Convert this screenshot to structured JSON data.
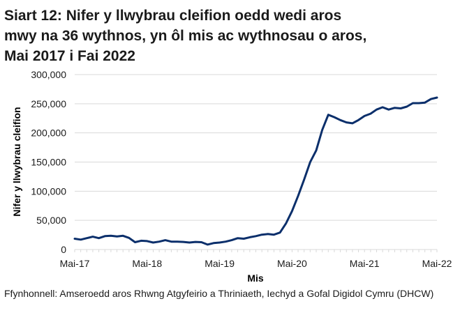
{
  "title_lines": [
    "Siart 12: Nifer y llwybrau cleifion oedd wedi aros",
    "mwy na 36 wythnos, yn ôl mis ac wythnosau o aros,",
    "Mai 2017 i Fai 2022"
  ],
  "source": "Ffynhonnell: Amseroedd aros Rhwng Atgyfeirio a Thriniaeth, Iechyd a Gofal Digidol Cymru (DHCW)",
  "colors": {
    "line": "#0b2f6b",
    "grid": "#d9d9d9",
    "text": "#1a1a1a"
  },
  "chart_data": {
    "type": "line",
    "title": "Siart 12: Nifer y llwybrau cleifion oedd wedi aros mwy na 36 wythnos, yn ôl mis ac wythnosau o aros, Mai 2017 i Fai 2022",
    "xlabel": "Mis",
    "ylabel": "Nifer y llwybrau cleifion",
    "ylim": [
      0,
      300000
    ],
    "yticks": [
      0,
      50000,
      100000,
      150000,
      200000,
      250000,
      300000
    ],
    "ytick_labels": [
      "0",
      "50,000",
      "100,000",
      "150,000",
      "200,000",
      "250,000",
      "300,000"
    ],
    "xtick_labels": [
      "Mai-17",
      "Mai-18",
      "Mai-19",
      "Mai-20",
      "Mai-21",
      "Mai-22"
    ],
    "xtick_positions": [
      0,
      12,
      24,
      36,
      48,
      60
    ],
    "grid": true,
    "legend": "none",
    "x": [
      "Mai-17",
      "Meh-17",
      "Gor-17",
      "Awst-17",
      "Med-17",
      "Hyd-17",
      "Tach-17",
      "Rhag-17",
      "Ion-18",
      "Chwef-18",
      "Maw-18",
      "Ebr-18",
      "Mai-18",
      "Meh-18",
      "Gor-18",
      "Awst-18",
      "Med-18",
      "Hyd-18",
      "Tach-18",
      "Rhag-18",
      "Ion-19",
      "Chwef-19",
      "Maw-19",
      "Ebr-19",
      "Mai-19",
      "Meh-19",
      "Gor-19",
      "Awst-19",
      "Med-19",
      "Hyd-19",
      "Tach-19",
      "Rhag-19",
      "Ion-20",
      "Chwef-20",
      "Maw-20",
      "Ebr-20",
      "Mai-20",
      "Meh-20",
      "Gor-20",
      "Awst-20",
      "Med-20",
      "Hyd-20",
      "Tach-20",
      "Rhag-20",
      "Ion-21",
      "Chwef-21",
      "Maw-21",
      "Ebr-21",
      "Mai-21",
      "Meh-21",
      "Gor-21",
      "Awst-21",
      "Med-21",
      "Hyd-21",
      "Tach-21",
      "Rhag-21",
      "Ion-22",
      "Chwef-22",
      "Maw-22",
      "Ebr-22",
      "Mai-22"
    ],
    "series": [
      {
        "name": "Nifer y llwybrau cleifion",
        "values": [
          18500,
          17000,
          19500,
          22000,
          19500,
          23000,
          23500,
          22500,
          23500,
          20000,
          12500,
          15000,
          14500,
          12000,
          13500,
          16000,
          13500,
          13500,
          13000,
          12000,
          13000,
          12500,
          8500,
          11000,
          12000,
          13500,
          16000,
          19500,
          18500,
          21000,
          23000,
          25500,
          26500,
          25500,
          29000,
          45000,
          66000,
          92000,
          120000,
          150000,
          170000,
          205000,
          231000,
          227000,
          222000,
          218000,
          216500,
          222000,
          229000,
          233000,
          240000,
          244000,
          240000,
          243000,
          242000,
          245000,
          251000,
          251000,
          252000,
          258000,
          260500
        ]
      }
    ]
  }
}
